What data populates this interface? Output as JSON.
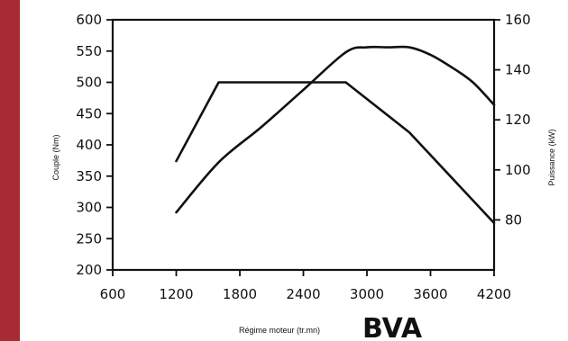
{
  "colors": {
    "left_bar": "#a62b33",
    "line": "#111111"
  },
  "chart_data": {
    "type": "line",
    "xlabel": "Régime moteur (tr.mn)",
    "ylabel": "Couple (Nm)",
    "y2label": "Puissance (kW)",
    "caption": "BVA",
    "xlim": [
      600,
      4200
    ],
    "ylim": [
      200,
      600
    ],
    "y2_ticks": [
      80,
      100,
      120,
      140,
      160
    ],
    "x_ticks": [
      600,
      1200,
      1800,
      2400,
      3000,
      3600,
      4200
    ],
    "y_ticks": [
      200,
      250,
      300,
      350,
      400,
      450,
      500,
      550,
      600
    ],
    "grid": false,
    "series": [
      {
        "axis": "left",
        "x": [
          1200,
          1600,
          2800,
          3400,
          4200
        ],
        "y": [
          374,
          500,
          500,
          420,
          275
        ]
      },
      {
        "axis": "right",
        "x": [
          1200,
          1600,
          2000,
          2400,
          2800,
          3000,
          3200,
          3400,
          3600,
          3800,
          4000,
          4200
        ],
        "y": [
          83,
          103,
          117,
          132,
          147,
          149,
          149,
          149,
          146,
          141,
          135,
          126
        ]
      }
    ]
  }
}
